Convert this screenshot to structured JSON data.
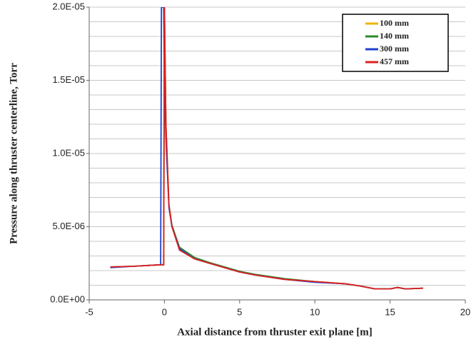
{
  "chart_data": {
    "type": "line",
    "xlabel": "Axial distance from thruster exit plane [m]",
    "ylabel": "Pressure along thruster centerline, Torr",
    "x": [
      -3.6,
      -2,
      -0.25,
      -0.2,
      -0.05,
      0,
      0.1,
      0.3,
      0.5,
      1,
      2,
      3,
      4,
      5,
      6,
      8,
      10,
      12,
      13,
      14,
      15,
      15.5,
      16,
      17.2
    ],
    "series": [
      {
        "name": "100 mm",
        "color": "#f0b400",
        "values": [
          2.25e-06,
          2.3e-06,
          2.4e-06,
          2.4e-06,
          2.4e-06,
          2e-05,
          1.15e-05,
          6.4e-06,
          5e-06,
          3.5e-06,
          2.85e-06,
          2.5e-06,
          2.2e-06,
          1.95e-06,
          1.7e-06,
          1.4e-06,
          1.25e-06,
          1.1e-06,
          9.5e-07,
          7.5e-07,
          7.5e-07,
          8.5e-07,
          7.5e-07,
          8e-07
        ]
      },
      {
        "name": "140 mm",
        "color": "#2a8a2a",
        "values": [
          2.25e-06,
          2.3e-06,
          2.4e-06,
          2.4e-06,
          2.4e-06,
          2e-05,
          1.2e-05,
          6.5e-06,
          5.1e-06,
          3.6e-06,
          2.9e-06,
          2.55e-06,
          2.25e-06,
          1.95e-06,
          1.75e-06,
          1.45e-06,
          1.25e-06,
          1.1e-06,
          9.5e-07,
          7.5e-07,
          7.5e-07,
          8.5e-07,
          7.5e-07,
          8e-07
        ]
      },
      {
        "name": "300 mm",
        "color": "#2040d0",
        "values": [
          2.2e-06,
          2.3e-06,
          2.4e-06,
          2e-05,
          2e-05,
          1.5e-05,
          1.1e-05,
          6.3e-06,
          5e-06,
          3.5e-06,
          2.8e-06,
          2.5e-06,
          2.2e-06,
          1.9e-06,
          1.7e-06,
          1.4e-06,
          1.2e-06,
          1.1e-06,
          9.5e-07,
          7.5e-07,
          7.5e-07,
          8.5e-07,
          7.5e-07,
          8e-07
        ]
      },
      {
        "name": "457 mm",
        "color": "#e02020",
        "values": [
          2.25e-06,
          2.3e-06,
          2.4e-06,
          2.4e-06,
          2.4e-06,
          2e-05,
          1.2e-05,
          6.5e-06,
          5e-06,
          3.4e-06,
          2.8e-06,
          2.5e-06,
          2.2e-06,
          1.9e-06,
          1.7e-06,
          1.4e-06,
          1.25e-06,
          1.1e-06,
          9.5e-07,
          7.5e-07,
          7.5e-07,
          8.5e-07,
          7.5e-07,
          8e-07
        ]
      }
    ],
    "xlim": [
      -5,
      20
    ],
    "xticks": [
      -5,
      0,
      5,
      10,
      15,
      20
    ],
    "ylim": [
      0,
      2e-05
    ],
    "yticks": [
      {
        "value": 0,
        "label": "0.0E+00"
      },
      {
        "value": 5e-06,
        "label": "5.0E-06"
      },
      {
        "value": 1e-05,
        "label": "1.0E-05"
      },
      {
        "value": 1.5e-05,
        "label": "1.5E-05"
      },
      {
        "value": 2e-05,
        "label": "2.0E-05"
      }
    ],
    "ygrid": [
      1e-06,
      2e-06,
      3e-06,
      4e-06,
      5e-06,
      6e-06,
      7e-06,
      8e-06,
      9e-06,
      1e-05,
      1.1e-05,
      1.2e-05,
      1.3e-05,
      1.4e-05,
      1.5e-05,
      1.6e-05,
      1.7e-05,
      1.8e-05,
      1.9e-05,
      2e-05
    ],
    "legend": "upper right"
  }
}
